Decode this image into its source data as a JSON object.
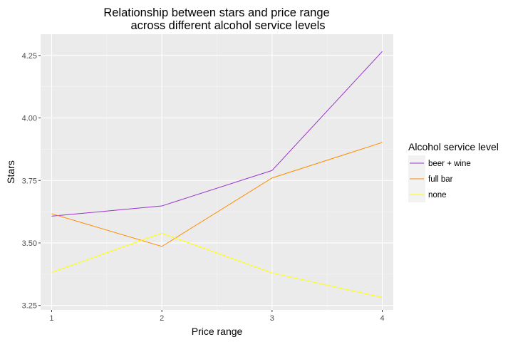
{
  "chart_data": {
    "type": "line",
    "title_lines": [
      "Relationship between stars and price range",
      "across different alcohol service levels"
    ],
    "xlabel": "Price range",
    "ylabel": "Stars",
    "x": [
      1,
      2,
      3,
      4
    ],
    "x_tick_labels": [
      "1",
      "2",
      "3",
      "4"
    ],
    "xlim": [
      0.9,
      4.1
    ],
    "ylim": [
      3.232,
      4.335
    ],
    "y_ticks": [
      3.25,
      3.5,
      3.75,
      4.0,
      4.25
    ],
    "y_tick_labels": [
      "3.25",
      "3.50",
      "3.75",
      "4.00",
      "4.25"
    ],
    "grid": true,
    "legend_title": "Alcohol service level",
    "legend_position": "right",
    "series": [
      {
        "name": "beer + wine",
        "color": "#9a32cd",
        "values": [
          3.607,
          3.648,
          3.79,
          4.266
        ]
      },
      {
        "name": "full bar",
        "color": "#ff8c00",
        "values": [
          3.617,
          3.486,
          3.76,
          3.902
        ]
      },
      {
        "name": "none",
        "color": "#ffff00",
        "values": [
          3.382,
          3.539,
          3.38,
          3.282
        ]
      }
    ]
  }
}
